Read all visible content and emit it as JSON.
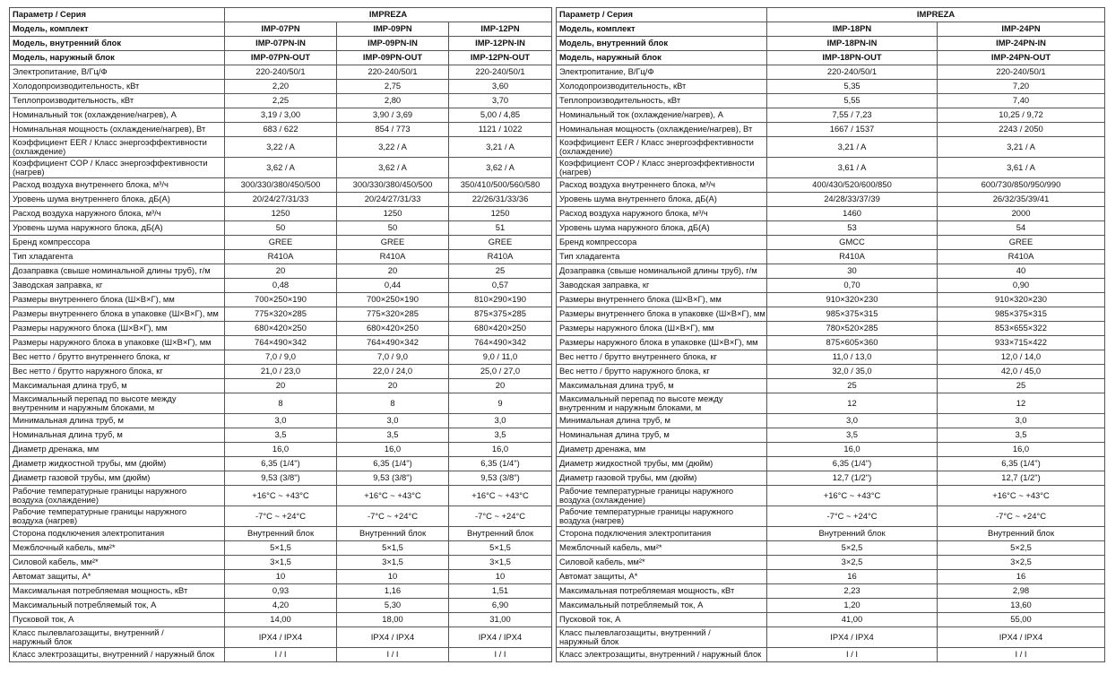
{
  "left_table": {
    "header": {
      "param": "Параметр / Серия",
      "series": "IMPREZA"
    },
    "rows": [
      {
        "label": "Модель, комплект",
        "values": [
          "IMP-07PN",
          "IMP-09PN",
          "IMP-12PN"
        ],
        "bold": true
      },
      {
        "label": "Модель, внутренний блок",
        "values": [
          "IMP-07PN-IN",
          "IMP-09PN-IN",
          "IMP-12PN-IN"
        ],
        "bold": true
      },
      {
        "label": "Модель, наружный блок",
        "values": [
          "IMP-07PN-OUT",
          "IMP-09PN-OUT",
          "IMP-12PN-OUT"
        ],
        "bold": true
      },
      {
        "label": "Электропитание, В/Гц/Ф",
        "values": [
          "220-240/50/1",
          "220-240/50/1",
          "220-240/50/1"
        ]
      },
      {
        "label": "Холодопроизводительность, кВт",
        "values": [
          "2,20",
          "2,75",
          "3,60"
        ]
      },
      {
        "label": "Теплопроизводительность, кВт",
        "values": [
          "2,25",
          "2,80",
          "3,70"
        ]
      },
      {
        "label": "Номинальный ток (охлаждение/нагрев), А",
        "values": [
          "3,19 / 3,00",
          "3,90 / 3,69",
          "5,00 / 4,85"
        ]
      },
      {
        "label": "Номинальная мощность (охлаждение/нагрев), Вт",
        "values": [
          "683 / 622",
          "854 / 773",
          "1121 / 1022"
        ]
      },
      {
        "label": "Коэффициент EER / Класс энергоэффективности\n(охлаждение)",
        "values": [
          "3,22 / A",
          "3,22 / A",
          "3,21 / A"
        ]
      },
      {
        "label": "Коэффициент COP / Класс энергоэффективности\n(нагрев)",
        "values": [
          "3,62 / A",
          "3,62 / A",
          "3,62 / A"
        ]
      },
      {
        "label": "Расход воздуха внутреннего блока, м³/ч",
        "values": [
          "300/330/380/450/500",
          "300/330/380/450/500",
          "350/410/500/560/580"
        ]
      },
      {
        "label": "Уровень шума внутреннего блока, дБ(А)",
        "values": [
          "20/24/27/31/33",
          "20/24/27/31/33",
          "22/26/31/33/36"
        ]
      },
      {
        "label": "Расход воздуха наружного блока, м³/ч",
        "values": [
          "1250",
          "1250",
          "1250"
        ]
      },
      {
        "label": "Уровень шума наружного блока, дБ(А)",
        "values": [
          "50",
          "50",
          "51"
        ]
      },
      {
        "label": "Бренд компрессора",
        "values": [
          "GREE",
          "GREE",
          "GREE"
        ]
      },
      {
        "label": "Тип хладагента",
        "values": [
          "R410A",
          "R410A",
          "R410A"
        ]
      },
      {
        "label": "Дозаправка (свыше номинальной длины труб), г/м",
        "values": [
          "20",
          "20",
          "25"
        ]
      },
      {
        "label": "Заводская заправка, кг",
        "values": [
          "0,48",
          "0,44",
          "0,57"
        ]
      },
      {
        "label": "Размеры внутреннего блока (Ш×В×Г), мм",
        "values": [
          "700×250×190",
          "700×250×190",
          "810×290×190"
        ]
      },
      {
        "label": "Размеры внутреннего блока в упаковке (Ш×В×Г), мм",
        "values": [
          "775×320×285",
          "775×320×285",
          "875×375×285"
        ]
      },
      {
        "label": "Размеры наружного блока (Ш×В×Г), мм",
        "values": [
          "680×420×250",
          "680×420×250",
          "680×420×250"
        ]
      },
      {
        "label": "Размеры наружного блока в упаковке (Ш×В×Г), мм",
        "values": [
          "764×490×342",
          "764×490×342",
          "764×490×342"
        ]
      },
      {
        "label": "Вес нетто / брутто внутреннего блока, кг",
        "values": [
          "7,0 / 9,0",
          "7,0 / 9,0",
          "9,0 / 11,0"
        ]
      },
      {
        "label": "Вес нетто / брутто наружного блока, кг",
        "values": [
          "21,0 / 23,0",
          "22,0 / 24,0",
          "25,0 / 27,0"
        ]
      },
      {
        "label": "Максимальная длина труб, м",
        "values": [
          "20",
          "20",
          "20"
        ]
      },
      {
        "label": "Максимальный перепад по высоте между\nвнутренним и наружным блоками, м",
        "values": [
          "8",
          "8",
          "9"
        ]
      },
      {
        "label": "Минимальная длина труб, м",
        "values": [
          "3,0",
          "3,0",
          "3,0"
        ]
      },
      {
        "label": "Номинальная длина труб, м",
        "values": [
          "3,5",
          "3,5",
          "3,5"
        ]
      },
      {
        "label": "Диаметр дренажа, мм",
        "values": [
          "16,0",
          "16,0",
          "16,0"
        ]
      },
      {
        "label": "Диаметр жидкостной трубы, мм (дюйм)",
        "values": [
          "6,35 (1/4\")",
          "6,35 (1/4\")",
          "6,35 (1/4\")"
        ]
      },
      {
        "label": "Диаметр газовой трубы, мм (дюйм)",
        "values": [
          "9,53 (3/8\")",
          "9,53 (3/8\")",
          "9,53 (3/8\")"
        ]
      },
      {
        "label": "Рабочие температурные границы наружного\nвоздуха (охлаждение)",
        "values": [
          "+16°C ~ +43°C",
          "+16°C ~ +43°C",
          "+16°C ~ +43°C"
        ]
      },
      {
        "label": "Рабочие температурные границы наружного\nвоздуха (нагрев)",
        "values": [
          "-7°C ~ +24°C",
          "-7°C ~ +24°C",
          "-7°C ~ +24°C"
        ]
      },
      {
        "label": "Сторона подключения электропитания",
        "values": [
          "Внутренний блок",
          "Внутренний блок",
          "Внутренний блок"
        ]
      },
      {
        "label": "Межблочный кабель, мм²*",
        "values": [
          "5×1,5",
          "5×1,5",
          "5×1,5"
        ]
      },
      {
        "label": "Силовой кабель, мм²*",
        "values": [
          "3×1,5",
          "3×1,5",
          "3×1,5"
        ]
      },
      {
        "label": "Автомат защиты, А*",
        "values": [
          "10",
          "10",
          "10"
        ]
      },
      {
        "label": "Максимальная потребляемая мощность, кВт",
        "values": [
          "0,93",
          "1,16",
          "1,51"
        ]
      },
      {
        "label": "Максимальный потребляемый ток, А",
        "values": [
          "4,20",
          "5,30",
          "6,90"
        ]
      },
      {
        "label": "Пусковой ток, А",
        "values": [
          "14,00",
          "18,00",
          "31,00"
        ]
      },
      {
        "label": "Класс пылевлагозащиты, внутренний /\nнаружный блок",
        "values": [
          "IPX4 / IPX4",
          "IPX4 / IPX4",
          "IPX4 / IPX4"
        ]
      },
      {
        "label": "Класс электрозащиты, внутренний / наружный блок",
        "values": [
          "I / I",
          "I / I",
          "I / I"
        ]
      }
    ]
  },
  "right_table": {
    "header": {
      "param": "Параметр / Серия",
      "series": "IMPREZA"
    },
    "rows": [
      {
        "label": "Модель, комплект",
        "values": [
          "IMP-18PN",
          "IMP-24PN"
        ],
        "bold": true
      },
      {
        "label": "Модель, внутренний блок",
        "values": [
          "IMP-18PN-IN",
          "IMP-24PN-IN"
        ],
        "bold": true
      },
      {
        "label": "Модель, наружный блок",
        "values": [
          "IMP-18PN-OUT",
          "IMP-24PN-OUT"
        ],
        "bold": true
      },
      {
        "label": "Электропитание, В/Гц/Ф",
        "values": [
          "220-240/50/1",
          "220-240/50/1"
        ]
      },
      {
        "label": "Холодопроизводительность, кВт",
        "values": [
          "5,35",
          "7,20"
        ]
      },
      {
        "label": "Теплопроизводительность, кВт",
        "values": [
          "5,55",
          "7,40"
        ]
      },
      {
        "label": "Номинальный ток (охлаждение/нагрев), А",
        "values": [
          "7,55 / 7,23",
          "10,25 / 9,72"
        ]
      },
      {
        "label": "Номинальная мощность (охлаждение/нагрев), Вт",
        "values": [
          "1667 / 1537",
          "2243 / 2050"
        ]
      },
      {
        "label": "Коэффициент EER / Класс энергоэффективности\n(охлаждение)",
        "values": [
          "3,21 / A",
          "3,21 / A"
        ]
      },
      {
        "label": "Коэффициент COP / Класс энергоэффективности\n(нагрев)",
        "values": [
          "3,61 / A",
          "3,61 / A"
        ]
      },
      {
        "label": "Расход воздуха внутреннего блока, м³/ч",
        "values": [
          "400/430/520/600/850",
          "600/730/850/950/990"
        ]
      },
      {
        "label": "Уровень шума внутреннего блока, дБ(А)",
        "values": [
          "24/28/33/37/39",
          "26/32/35/39/41"
        ]
      },
      {
        "label": "Расход воздуха наружного блока, м³/ч",
        "values": [
          "1460",
          "2000"
        ]
      },
      {
        "label": "Уровень шума наружного блока, дБ(А)",
        "values": [
          "53",
          "54"
        ]
      },
      {
        "label": "Бренд компрессора",
        "values": [
          "GMCC",
          "GREE"
        ]
      },
      {
        "label": "Тип хладагента",
        "values": [
          "R410A",
          "R410A"
        ]
      },
      {
        "label": "Дозаправка (свыше номинальной длины труб), г/м",
        "values": [
          "30",
          "40"
        ]
      },
      {
        "label": "Заводская заправка, кг",
        "values": [
          "0,70",
          "0,90"
        ]
      },
      {
        "label": "Размеры внутреннего блока (Ш×В×Г), мм",
        "values": [
          "910×320×230",
          "910×320×230"
        ]
      },
      {
        "label": "Размеры внутреннего блока в упаковке (Ш×В×Г), мм",
        "values": [
          "985×375×315",
          "985×375×315"
        ]
      },
      {
        "label": "Размеры наружного блока (Ш×В×Г), мм",
        "values": [
          "780×520×285",
          "853×655×322"
        ]
      },
      {
        "label": "Размеры наружного блока в упаковке (Ш×В×Г), мм",
        "values": [
          "875×605×360",
          "933×715×422"
        ]
      },
      {
        "label": "Вес нетто / брутто внутреннего блока, кг",
        "values": [
          "11,0 / 13,0",
          "12,0 / 14,0"
        ]
      },
      {
        "label": "Вес нетто / брутто наружного блока, кг",
        "values": [
          "32,0 / 35,0",
          "42,0 / 45,0"
        ]
      },
      {
        "label": "Максимальная длина труб, м",
        "values": [
          "25",
          "25"
        ]
      },
      {
        "label": "Максимальный перепад по высоте между\nвнутренним и наружным блоками, м",
        "values": [
          "12",
          "12"
        ]
      },
      {
        "label": "Минимальная длина труб, м",
        "values": [
          "3,0",
          "3,0"
        ]
      },
      {
        "label": "Номинальная длина труб, м",
        "values": [
          "3,5",
          "3,5"
        ]
      },
      {
        "label": "Диаметр дренажа, мм",
        "values": [
          "16,0",
          "16,0"
        ]
      },
      {
        "label": "Диаметр жидкостной трубы, мм (дюйм)",
        "values": [
          "6,35 (1/4\")",
          "6,35 (1/4\")"
        ]
      },
      {
        "label": "Диаметр газовой трубы, мм (дюйм)",
        "values": [
          "12,7 (1/2\")",
          "12,7 (1/2\")"
        ]
      },
      {
        "label": "Рабочие температурные границы наружного\nвоздуха (охлаждение)",
        "values": [
          "+16°C ~ +43°C",
          "+16°C ~ +43°C"
        ]
      },
      {
        "label": "Рабочие температурные границы наружного\nвоздуха (нагрев)",
        "values": [
          "-7°C ~ +24°C",
          "-7°C ~ +24°C"
        ]
      },
      {
        "label": "Сторона подключения электропитания",
        "values": [
          "Внутренний блок",
          "Внутренний блок"
        ]
      },
      {
        "label": "Межблочный кабель, мм²*",
        "values": [
          "5×2,5",
          "5×2,5"
        ]
      },
      {
        "label": "Силовой кабель, мм²*",
        "values": [
          "3×2,5",
          "3×2,5"
        ]
      },
      {
        "label": "Автомат защиты, А*",
        "values": [
          "16",
          "16"
        ]
      },
      {
        "label": "Максимальная потребляемая мощность, кВт",
        "values": [
          "2,23",
          "2,98"
        ]
      },
      {
        "label": "Максимальный потребляемый ток, А",
        "values": [
          "1,20",
          "13,60"
        ]
      },
      {
        "label": "Пусковой ток, А",
        "values": [
          "41,00",
          "55,00"
        ]
      },
      {
        "label": "Класс пылевлагозащиты, внутренний /\nнаружный блок",
        "values": [
          "IPX4 / IPX4",
          "IPX4 / IPX4"
        ]
      },
      {
        "label": "Класс электрозащиты, внутренний / наружный блок",
        "values": [
          "I / I",
          "I / I"
        ]
      }
    ]
  }
}
